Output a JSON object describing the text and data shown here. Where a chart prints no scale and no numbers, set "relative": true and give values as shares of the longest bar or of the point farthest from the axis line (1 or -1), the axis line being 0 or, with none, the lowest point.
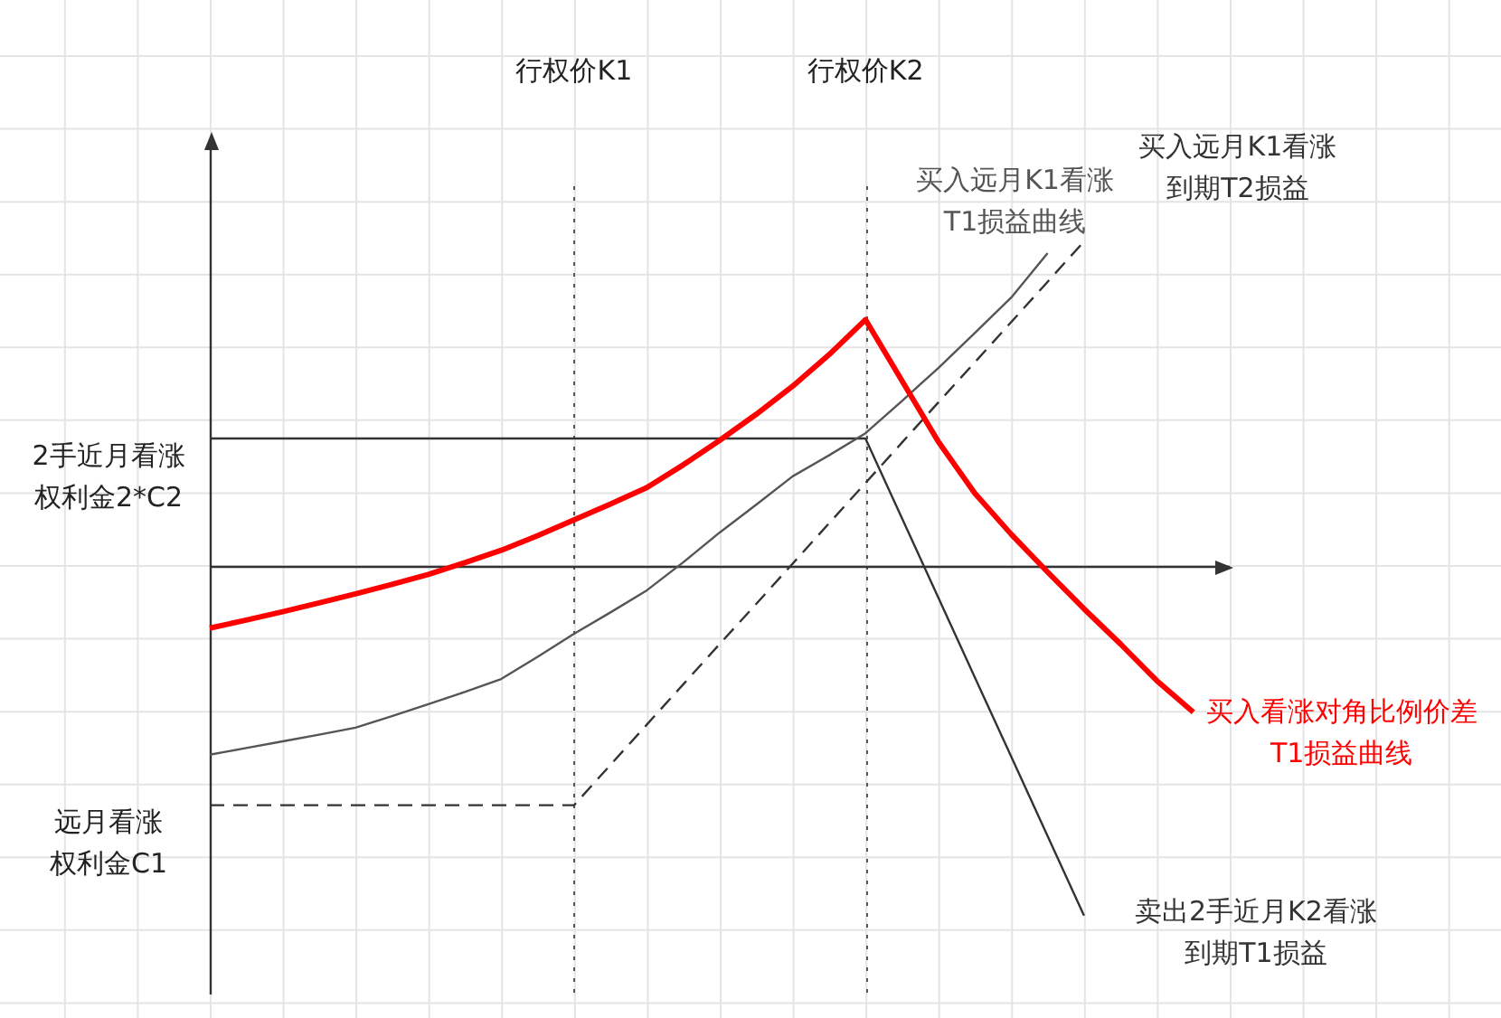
{
  "chart_data": {
    "type": "line",
    "relative": true,
    "tick_labels": false,
    "grid": true,
    "legend": false,
    "marker": "none",
    "categories": [
      null,
      null,
      null,
      null,
      null,
      null,
      null,
      null,
      null,
      null,
      null,
      null,
      null,
      null,
      null,
      null,
      null,
      null,
      null,
      null,
      null,
      null,
      null,
      null,
      null,
      null,
      null,
      null,
      null
    ],
    "series": [
      {
        "name": "买入看涨对角比例价差T1损益曲线",
        "color": "#ff0000",
        "values": [
          -0.18,
          -0.157,
          -0.133,
          -0.108,
          -0.082,
          -0.055,
          -0.027,
          0.007,
          0.042,
          0.084,
          0.129,
          0.174,
          0.221,
          0.286,
          0.356,
          0.43,
          0.51,
          0.6,
          0.7,
          0.526,
          0.352,
          0.205,
          0.088,
          -0.02,
          -0.125,
          -0.225,
          -0.33,
          -0.42,
          null
        ]
      },
      {
        "name": "买入远月K1看涨T1损益曲线",
        "color": "#555555",
        "values": [
          -0.541,
          -0.522,
          -0.503,
          -0.484,
          -0.464,
          -0.431,
          -0.397,
          -0.362,
          -0.325,
          -0.262,
          -0.196,
          -0.135,
          -0.072,
          0.008,
          0.093,
          0.172,
          0.253,
          0.313,
          0.376,
          0.468,
          0.562,
          0.662,
          0.763,
          0.89,
          null,
          null,
          null,
          null,
          null
        ]
      },
      {
        "name": "买入远月K1看涨到期T2损益",
        "color": "#333333",
        "line_style": "dashed",
        "values": [
          -0.685,
          -0.685,
          -0.685,
          -0.685,
          -0.685,
          -0.685,
          -0.685,
          -0.685,
          -0.685,
          -0.685,
          -0.685,
          -0.57,
          -0.455,
          -0.34,
          -0.225,
          -0.111,
          0.004,
          0.119,
          0.234,
          0.349,
          0.464,
          0.578,
          0.693,
          0.808,
          0.923,
          null,
          null,
          null,
          null
        ]
      },
      {
        "name": "卖出2手近月K2看涨到期T1损益",
        "color": "#333333",
        "values": [
          0.361,
          0.361,
          0.361,
          0.361,
          0.361,
          0.361,
          0.361,
          0.361,
          0.361,
          0.361,
          0.361,
          0.361,
          0.361,
          0.361,
          0.361,
          0.361,
          0.361,
          0.361,
          0.361,
          0.134,
          -0.093,
          -0.32,
          -0.546,
          -0.773,
          -1,
          null,
          null,
          null,
          null
        ]
      }
    ],
    "annotations": [
      "行权价K1",
      "行权价K2",
      "2手近月看涨权利金2*C2",
      "远月看涨权利金C1"
    ]
  }
}
